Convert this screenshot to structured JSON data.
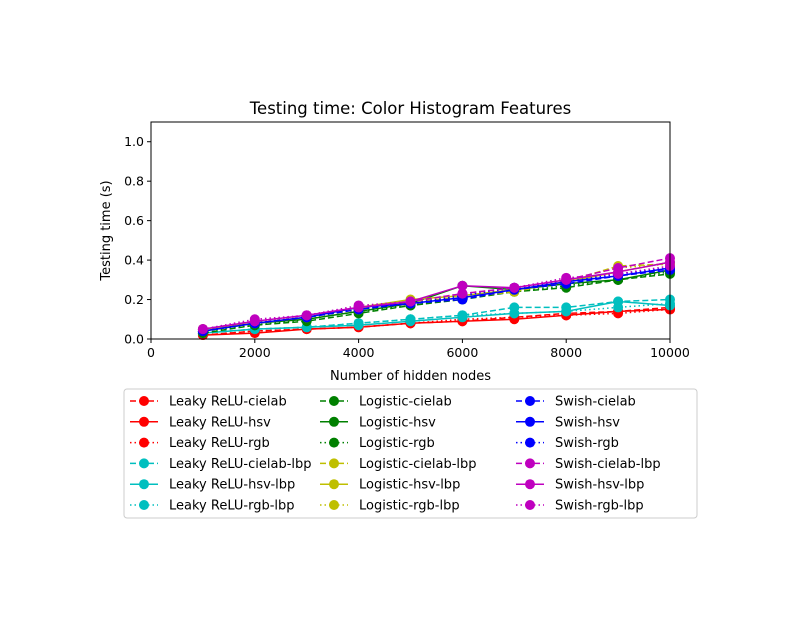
{
  "chart_data": {
    "type": "line",
    "title": "Testing time: Color Histogram Features",
    "xlabel": "Number of hidden nodes",
    "ylabel": "Testing time (s)",
    "xlim": [
      0,
      10000
    ],
    "ylim": [
      0,
      1.1
    ],
    "xticks": [
      "0",
      "2000",
      "4000",
      "6000",
      "8000",
      "10000"
    ],
    "yticks": [
      "0.0",
      "0.2",
      "0.4",
      "0.6",
      "0.8",
      "1.0"
    ],
    "grid": false,
    "legend_position": "below",
    "x": [
      1000,
      2000,
      3000,
      4000,
      5000,
      6000,
      7000,
      8000,
      9000,
      10000
    ],
    "series": [
      {
        "name": "Leaky ReLU-cielab",
        "color": "#ff0000",
        "dash": "dashed",
        "values": [
          0.02,
          0.04,
          0.05,
          0.06,
          0.08,
          0.09,
          0.11,
          0.13,
          0.14,
          0.16
        ]
      },
      {
        "name": "Leaky ReLU-hsv",
        "color": "#ff0000",
        "dash": "solid",
        "values": [
          0.02,
          0.03,
          0.05,
          0.06,
          0.08,
          0.09,
          0.1,
          0.12,
          0.14,
          0.15
        ]
      },
      {
        "name": "Leaky ReLU-rgb",
        "color": "#ff0000",
        "dash": "dotted",
        "values": [
          0.02,
          0.04,
          0.05,
          0.06,
          0.08,
          0.1,
          0.11,
          0.12,
          0.13,
          0.15
        ]
      },
      {
        "name": "Leaky ReLU-cielab-lbp",
        "color": "#00bfbf",
        "dash": "dashed",
        "values": [
          0.03,
          0.05,
          0.06,
          0.08,
          0.1,
          0.12,
          0.16,
          0.16,
          0.19,
          0.2
        ]
      },
      {
        "name": "Leaky ReLU-hsv-lbp",
        "color": "#00bfbf",
        "dash": "solid",
        "values": [
          0.03,
          0.05,
          0.06,
          0.07,
          0.09,
          0.11,
          0.13,
          0.14,
          0.19,
          0.17
        ]
      },
      {
        "name": "Leaky ReLU-rgb-lbp",
        "color": "#00bfbf",
        "dash": "dotted",
        "values": [
          0.03,
          0.05,
          0.06,
          0.08,
          0.1,
          0.12,
          0.13,
          0.14,
          0.16,
          0.18
        ]
      },
      {
        "name": "Logistic-cielab",
        "color": "#008000",
        "dash": "dashed",
        "values": [
          0.03,
          0.07,
          0.09,
          0.13,
          0.17,
          0.2,
          0.24,
          0.26,
          0.3,
          0.33
        ]
      },
      {
        "name": "Logistic-hsv",
        "color": "#008000",
        "dash": "solid",
        "values": [
          0.04,
          0.08,
          0.1,
          0.14,
          0.18,
          0.27,
          0.25,
          0.28,
          0.3,
          0.35
        ]
      },
      {
        "name": "Logistic-rgb",
        "color": "#008000",
        "dash": "dotted",
        "values": [
          0.04,
          0.07,
          0.1,
          0.14,
          0.17,
          0.21,
          0.24,
          0.27,
          0.3,
          0.34
        ]
      },
      {
        "name": "Logistic-cielab-lbp",
        "color": "#bfbf00",
        "dash": "dashed",
        "values": [
          0.05,
          0.08,
          0.11,
          0.15,
          0.19,
          0.21,
          0.24,
          0.29,
          0.37,
          0.38
        ]
      },
      {
        "name": "Logistic-hsv-lbp",
        "color": "#bfbf00",
        "dash": "solid",
        "values": [
          0.05,
          0.08,
          0.11,
          0.16,
          0.2,
          0.22,
          0.25,
          0.29,
          0.34,
          0.39
        ]
      },
      {
        "name": "Logistic-rgb-lbp",
        "color": "#bfbf00",
        "dash": "dotted",
        "values": [
          0.05,
          0.09,
          0.11,
          0.15,
          0.19,
          0.22,
          0.25,
          0.3,
          0.36,
          0.38
        ]
      },
      {
        "name": "Swish-cielab",
        "color": "#0000ff",
        "dash": "dashed",
        "values": [
          0.04,
          0.08,
          0.11,
          0.15,
          0.18,
          0.2,
          0.25,
          0.28,
          0.32,
          0.35
        ]
      },
      {
        "name": "Swish-hsv",
        "color": "#0000ff",
        "dash": "solid",
        "values": [
          0.04,
          0.08,
          0.11,
          0.16,
          0.18,
          0.21,
          0.25,
          0.29,
          0.32,
          0.36
        ]
      },
      {
        "name": "Swish-rgb",
        "color": "#0000ff",
        "dash": "dotted",
        "values": [
          0.04,
          0.08,
          0.11,
          0.15,
          0.18,
          0.22,
          0.26,
          0.29,
          0.33,
          0.36
        ]
      },
      {
        "name": "Swish-cielab-lbp",
        "color": "#bf00bf",
        "dash": "dashed",
        "values": [
          0.05,
          0.09,
          0.12,
          0.16,
          0.19,
          0.23,
          0.26,
          0.3,
          0.36,
          0.41
        ]
      },
      {
        "name": "Swish-hsv-lbp",
        "color": "#bf00bf",
        "dash": "solid",
        "values": [
          0.05,
          0.09,
          0.12,
          0.16,
          0.19,
          0.27,
          0.26,
          0.3,
          0.34,
          0.39
        ]
      },
      {
        "name": "Swish-rgb-lbp",
        "color": "#bf00bf",
        "dash": "dotted",
        "values": [
          0.05,
          0.1,
          0.12,
          0.17,
          0.19,
          0.23,
          0.26,
          0.31,
          0.33,
          0.37
        ]
      }
    ]
  }
}
